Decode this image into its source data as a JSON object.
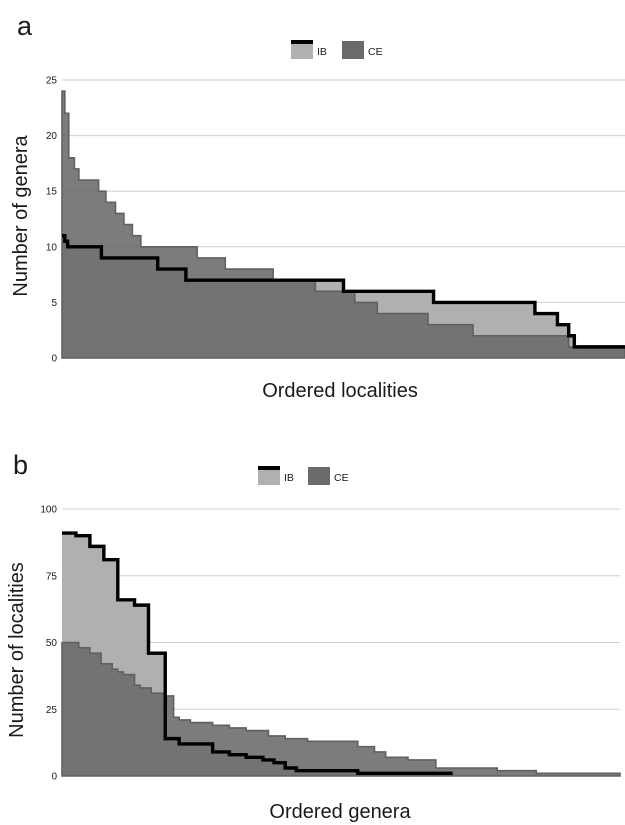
{
  "colors": {
    "ib_fill": "#b0b0b2",
    "ce_fill": "#6a6a6a",
    "ce_stroke": "#606060",
    "ib_line": "#000000",
    "grid": "#cfcfcf",
    "text": "#1a1a1a"
  },
  "chart_data": [
    {
      "panel_label": "a",
      "type": "area",
      "xlabel": "Ordered localities",
      "ylabel": "Number of genera",
      "ylim": [
        0,
        25
      ],
      "yticks": [
        0,
        5,
        10,
        15,
        20,
        25
      ],
      "grid": true,
      "legend": {
        "position": "top-center",
        "entries": [
          "IB",
          "CE"
        ]
      },
      "series": [
        {
          "name": "CE",
          "style": "filled-step-area",
          "x": [
            0,
            0.005,
            0.012,
            0.022,
            0.03,
            0.052,
            0.065,
            0.078,
            0.095,
            0.11,
            0.125,
            0.14,
            0.17,
            0.2,
            0.24,
            0.29,
            0.31,
            0.35,
            0.375,
            0.415,
            0.45,
            0.49,
            0.52,
            0.54,
            0.56,
            0.65,
            0.7,
            0.73,
            0.77,
            0.82,
            0.9,
            0.91,
            0.915,
            0.92,
            1.0
          ],
          "y": [
            24,
            22,
            18,
            17,
            16,
            16,
            15,
            14,
            13,
            12,
            11,
            10,
            10,
            10,
            9,
            8,
            8,
            8,
            7,
            7,
            6,
            6,
            5,
            5,
            4,
            3,
            3,
            2,
            2,
            2,
            1,
            1,
            1,
            1,
            1
          ]
        },
        {
          "name": "IB",
          "style": "filled-step-area-with-outline",
          "x": [
            0,
            0.005,
            0.01,
            0.03,
            0.05,
            0.07,
            0.09,
            0.1,
            0.11,
            0.12,
            0.14,
            0.17,
            0.19,
            0.2,
            0.22,
            0.3,
            0.33,
            0.38,
            0.42,
            0.45,
            0.5,
            0.54,
            0.58,
            0.6,
            0.66,
            0.7,
            0.76,
            0.82,
            0.84,
            0.86,
            0.88,
            0.9,
            0.91,
            0.92,
            1.0
          ],
          "y": [
            11,
            10.5,
            10,
            10,
            10,
            9,
            9,
            9,
            9,
            9,
            9,
            8,
            8,
            8,
            7,
            7,
            7,
            7,
            7,
            7,
            6,
            6,
            6,
            6,
            5,
            5,
            5,
            5,
            4,
            4,
            3,
            2,
            1,
            1,
            1
          ]
        }
      ]
    },
    {
      "panel_label": "b",
      "type": "area",
      "xlabel": "Ordered genera",
      "ylabel": "Number of localities",
      "ylim": [
        0,
        100
      ],
      "yticks": [
        0,
        25,
        50,
        75,
        100
      ],
      "grid": true,
      "legend": {
        "position": "top-center",
        "entries": [
          "IB",
          "CE"
        ]
      },
      "series": [
        {
          "name": "CE",
          "style": "filled-step-area",
          "x": [
            0,
            0.03,
            0.05,
            0.07,
            0.09,
            0.1,
            0.11,
            0.13,
            0.14,
            0.16,
            0.185,
            0.2,
            0.21,
            0.23,
            0.27,
            0.3,
            0.33,
            0.37,
            0.4,
            0.44,
            0.49,
            0.53,
            0.56,
            0.58,
            0.62,
            0.67,
            0.72,
            0.78,
            0.85,
            0.93,
            1.0
          ],
          "y": [
            50,
            48,
            46,
            42,
            40,
            39,
            38,
            34,
            33,
            31,
            30,
            22,
            21,
            20,
            19,
            18,
            17,
            15,
            14,
            13,
            13,
            11,
            9,
            7,
            6,
            3,
            3,
            2,
            1,
            1,
            1
          ]
        },
        {
          "name": "IB",
          "style": "filled-step-area-with-outline",
          "x": [
            0,
            0.025,
            0.05,
            0.075,
            0.1,
            0.13,
            0.155,
            0.185,
            0.21,
            0.23,
            0.27,
            0.3,
            0.33,
            0.36,
            0.38,
            0.4,
            0.42,
            0.44,
            0.47,
            0.5,
            0.53,
            0.55,
            0.58,
            0.62,
            0.66,
            0.7
          ],
          "y": [
            91,
            90,
            86,
            81,
            66,
            64,
            46,
            14,
            12,
            12,
            9,
            8,
            7,
            6,
            5,
            3,
            2,
            2,
            2,
            2,
            1,
            1,
            1,
            1,
            1,
            1
          ]
        }
      ]
    }
  ]
}
